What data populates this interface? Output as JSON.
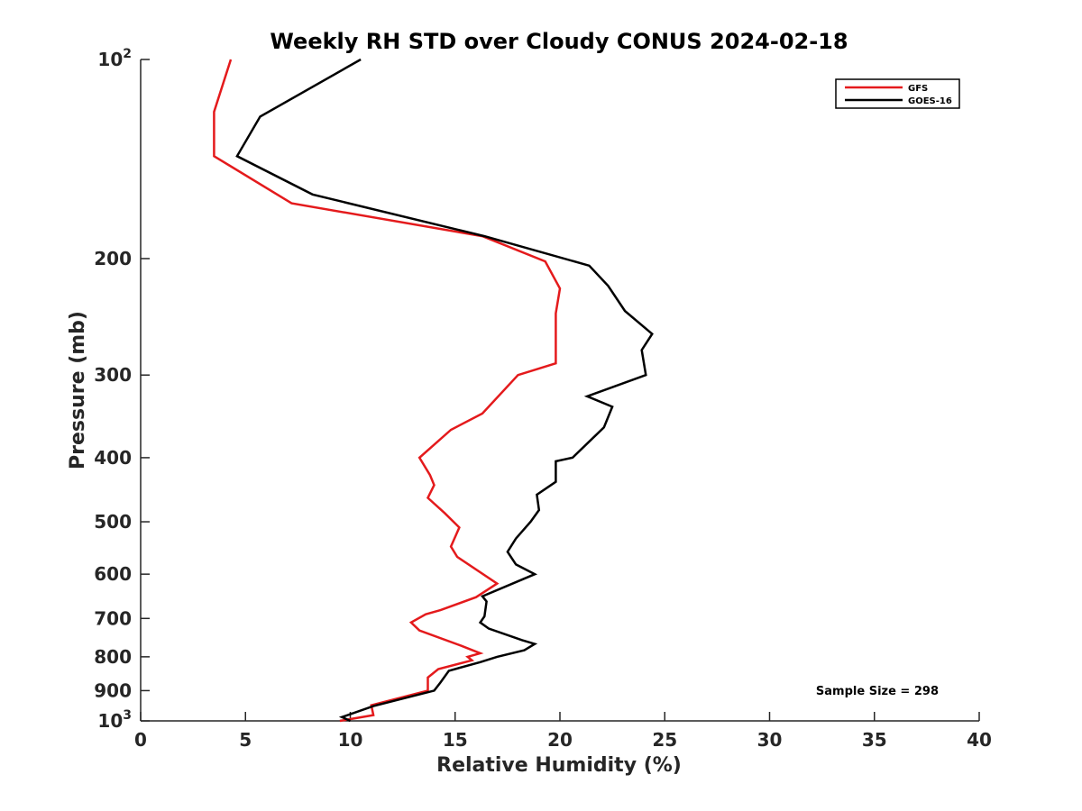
{
  "chart_data": {
    "type": "line",
    "title": "Weekly RH STD over Cloudy CONUS 2024-02-18",
    "xlabel": "Relative Humidity (%)",
    "ylabel": "Pressure (mb)",
    "xlim": [
      0,
      40
    ],
    "ylim": [
      100,
      1000
    ],
    "yscale": "log",
    "y_reversed": true,
    "grid": false,
    "legend_position": "top-right",
    "x_ticks": [
      "0",
      "5",
      "10",
      "15",
      "20",
      "25",
      "30",
      "35",
      "40"
    ],
    "y_ticks": [
      {
        "value": 100,
        "base": "10",
        "exp": "2"
      },
      {
        "value": 200,
        "label": "200"
      },
      {
        "value": 300,
        "label": "300"
      },
      {
        "value": 400,
        "label": "400"
      },
      {
        "value": 500,
        "label": "500"
      },
      {
        "value": 600,
        "label": "600"
      },
      {
        "value": 700,
        "label": "700"
      },
      {
        "value": 800,
        "label": "800"
      },
      {
        "value": 900,
        "label": "900"
      },
      {
        "value": 1000,
        "base": "10",
        "exp": "3"
      }
    ],
    "annotation": "Sample Size = 298",
    "series": [
      {
        "name": "GFS",
        "color": "#e41a1c",
        "x": [
          4.3,
          3.5,
          3.5,
          7.2,
          16.3,
          19.3,
          20.0,
          19.8,
          19.8,
          18.0,
          16.3,
          14.8,
          13.3,
          13.8,
          14.0,
          13.7,
          14.5,
          15.2,
          14.8,
          15.1,
          17.0,
          16.0,
          14.3,
          13.6,
          12.9,
          13.3,
          15.3,
          16.2,
          15.6,
          15.8,
          14.2,
          13.7,
          13.7,
          11.0,
          11.1,
          9.5
        ],
        "y": [
          100,
          120,
          140,
          165,
          185,
          202,
          222,
          242,
          288,
          300,
          343,
          363,
          400,
          425,
          440,
          460,
          485,
          510,
          545,
          565,
          620,
          650,
          680,
          690,
          710,
          730,
          770,
          790,
          800,
          810,
          835,
          860,
          900,
          947,
          980,
          1000
        ]
      },
      {
        "name": "GOES-16",
        "color": "#000000",
        "x": [
          10.5,
          5.7,
          4.6,
          8.2,
          16.4,
          21.4,
          22.3,
          23.1,
          24.4,
          23.9,
          24.1,
          21.3,
          22.5,
          22.1,
          20.6,
          19.8,
          19.8,
          18.9,
          19.0,
          18.6,
          17.9,
          17.5,
          17.9,
          18.8,
          16.3,
          16.5,
          16.4,
          16.2,
          16.6,
          18.2,
          18.8,
          18.3,
          17.0,
          16.2,
          14.7,
          14.3,
          14.0,
          11.1,
          9.6,
          10.0
        ],
        "y": [
          100,
          122,
          140,
          160,
          185,
          205,
          220,
          240,
          260,
          275,
          300,
          323,
          335,
          360,
          400,
          405,
          435,
          455,
          480,
          500,
          530,
          555,
          580,
          600,
          648,
          660,
          695,
          710,
          725,
          755,
          765,
          782,
          800,
          815,
          840,
          875,
          900,
          950,
          987,
          1000
        ]
      }
    ]
  }
}
